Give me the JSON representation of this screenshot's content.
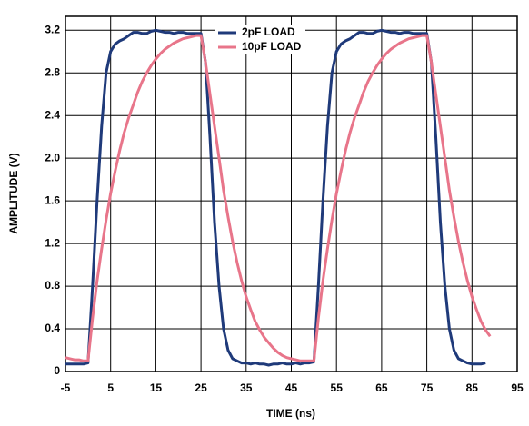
{
  "chart_data": {
    "type": "line",
    "x_label": "TIME (ns)",
    "y_label": "AMPLITUDE (V)",
    "xlim": [
      -5,
      95
    ],
    "xticks": [
      -5,
      5,
      15,
      25,
      35,
      45,
      55,
      65,
      75,
      85,
      95
    ],
    "ylim": [
      0,
      3.33
    ],
    "yticks": [
      0,
      0.4,
      0.8,
      1.2,
      1.6,
      {
        "value": 2,
        "label": "2.0"
      },
      2.4,
      2.8,
      3.2
    ],
    "grid": true,
    "legend": "top",
    "x": [
      -5,
      -4,
      -3,
      -2,
      -1,
      0,
      1,
      2,
      3,
      4,
      5,
      6,
      7,
      8,
      9,
      10,
      11,
      12,
      13,
      14,
      15,
      16,
      17,
      18,
      19,
      20,
      21,
      22,
      23,
      24,
      25,
      26,
      27,
      28,
      29,
      30,
      31,
      32,
      33,
      34,
      35,
      36,
      37,
      38,
      39,
      40,
      41,
      42,
      43,
      44,
      45,
      46,
      47,
      48,
      49,
      50,
      51,
      52,
      53,
      54,
      55,
      56,
      57,
      58,
      59,
      60,
      61,
      62,
      63,
      64,
      65,
      66,
      67,
      68,
      69,
      70,
      71,
      72,
      73,
      74,
      75,
      76,
      77,
      78,
      79,
      80,
      81,
      82,
      83,
      84,
      85,
      86,
      87,
      88,
      89
    ],
    "series": [
      {
        "name": "2pF LOAD",
        "color": "#1f3a7a",
        "values": [
          0.07,
          0.07,
          0.07,
          0.07,
          0.07,
          0.08,
          0.8,
          1.6,
          2.3,
          2.8,
          3.0,
          3.07,
          3.1,
          3.12,
          3.15,
          3.18,
          3.18,
          3.17,
          3.17,
          3.19,
          3.2,
          3.19,
          3.18,
          3.18,
          3.17,
          3.18,
          3.18,
          3.17,
          3.17,
          3.17,
          3.17,
          2.9,
          2.2,
          1.4,
          0.8,
          0.4,
          0.2,
          0.12,
          0.1,
          0.08,
          0.08,
          0.07,
          0.08,
          0.07,
          0.07,
          0.06,
          0.07,
          0.07,
          0.08,
          0.07,
          0.07,
          0.08,
          0.07,
          0.08,
          0.08,
          0.09,
          0.8,
          1.6,
          2.3,
          2.8,
          3.0,
          3.07,
          3.1,
          3.12,
          3.15,
          3.18,
          3.18,
          3.17,
          3.17,
          3.19,
          3.2,
          3.19,
          3.18,
          3.18,
          3.17,
          3.18,
          3.18,
          3.17,
          3.17,
          3.17,
          3.17,
          2.9,
          2.2,
          1.4,
          0.8,
          0.4,
          0.2,
          0.12,
          0.1,
          0.08,
          0.07,
          0.07,
          0.07,
          0.08,
          null
        ]
      },
      {
        "name": "10pF LOAD",
        "color": "#e8758a",
        "values": [
          0.13,
          0.12,
          0.11,
          0.11,
          0.1,
          0.1,
          0.5,
          0.85,
          1.15,
          1.42,
          1.67,
          1.88,
          2.07,
          2.24,
          2.38,
          2.5,
          2.62,
          2.72,
          2.8,
          2.87,
          2.93,
          2.98,
          3.02,
          3.05,
          3.08,
          3.1,
          3.12,
          3.13,
          3.14,
          3.15,
          3.15,
          2.9,
          2.6,
          2.3,
          2.0,
          1.7,
          1.45,
          1.22,
          1.02,
          0.85,
          0.7,
          0.58,
          0.47,
          0.39,
          0.32,
          0.27,
          0.22,
          0.18,
          0.15,
          0.13,
          0.12,
          0.11,
          0.1,
          0.1,
          0.1,
          0.1,
          0.5,
          0.85,
          1.15,
          1.42,
          1.67,
          1.88,
          2.07,
          2.24,
          2.38,
          2.5,
          2.62,
          2.72,
          2.8,
          2.87,
          2.93,
          2.98,
          3.02,
          3.05,
          3.08,
          3.1,
          3.12,
          3.13,
          3.14,
          3.15,
          3.15,
          2.9,
          2.6,
          2.3,
          2.0,
          1.7,
          1.45,
          1.22,
          1.02,
          0.85,
          0.7,
          0.58,
          0.47,
          0.39,
          0.33
        ]
      }
    ]
  }
}
